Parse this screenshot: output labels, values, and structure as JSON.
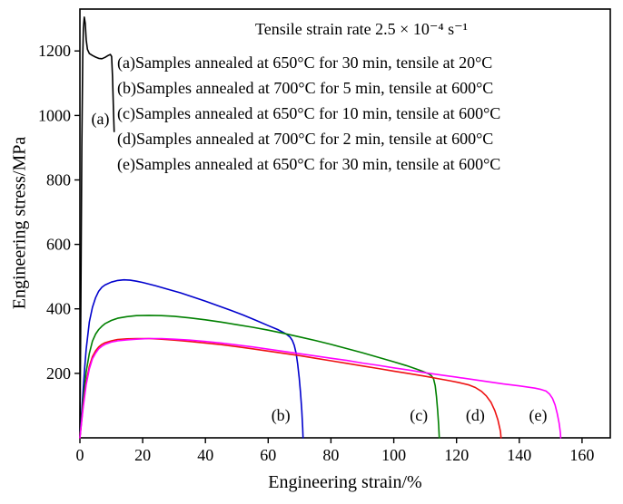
{
  "figure": {
    "background": "#ffffff",
    "axis_color": "#000000"
  },
  "chart_data": {
    "type": "line",
    "title": "Tensile strain rate 2.5 × 10⁻⁴ s⁻¹",
    "xlabel": "Engineering strain/%",
    "ylabel": "Engineering stress/MPa",
    "xlim": [
      0,
      169
    ],
    "ylim": [
      0,
      1330
    ],
    "x_ticks": [
      0,
      20,
      40,
      60,
      80,
      100,
      120,
      140,
      160
    ],
    "y_ticks": [
      200,
      400,
      600,
      800,
      1000,
      1200
    ],
    "grid": false,
    "legend_position": "top-center-inside",
    "legend": [
      "(a)Samples annealed at 650°C for 30 min, tensile at 20°C",
      "(b)Samples annealed at 700°C for 5 min, tensile at 600°C",
      "(c)Samples annealed at 650°C for 10 min, tensile at 600°C",
      "(d)Samples annealed at 700°C for 2 min, tensile at 600°C",
      "(e)Samples annealed at 650°C for 30 min, tensile at 600°C"
    ],
    "curve_labels": [
      {
        "text": "(a)",
        "x": 6.5,
        "y": 990
      },
      {
        "text": "(b)",
        "x": 64,
        "y": 70
      },
      {
        "text": "(c)",
        "x": 108,
        "y": 70
      },
      {
        "text": "(d)",
        "x": 126,
        "y": 70
      },
      {
        "text": "(e)",
        "x": 146,
        "y": 70
      }
    ],
    "series": [
      {
        "name": "a",
        "color": "#000000",
        "points": [
          [
            0,
            0
          ],
          [
            0.3,
            400
          ],
          [
            0.6,
            900
          ],
          [
            0.9,
            1180
          ],
          [
            1.1,
            1270
          ],
          [
            1.4,
            1305
          ],
          [
            1.7,
            1285
          ],
          [
            2.0,
            1235
          ],
          [
            2.4,
            1205
          ],
          [
            3.0,
            1192
          ],
          [
            4,
            1186
          ],
          [
            5,
            1181
          ],
          [
            6,
            1177
          ],
          [
            7,
            1176
          ],
          [
            8,
            1180
          ],
          [
            9,
            1186
          ],
          [
            9.7,
            1189
          ],
          [
            10.1,
            1183
          ],
          [
            10.4,
            1120
          ],
          [
            10.7,
            1010
          ],
          [
            10.9,
            950
          ]
        ]
      },
      {
        "name": "b",
        "color": "#0000cd",
        "points": [
          [
            0,
            0
          ],
          [
            0.5,
            70
          ],
          [
            1,
            145
          ],
          [
            1.5,
            215
          ],
          [
            2,
            275
          ],
          [
            3,
            360
          ],
          [
            4,
            405
          ],
          [
            5,
            435
          ],
          [
            6,
            455
          ],
          [
            7,
            467
          ],
          [
            8,
            474
          ],
          [
            10,
            483
          ],
          [
            12,
            488
          ],
          [
            14,
            490
          ],
          [
            16,
            489
          ],
          [
            18,
            486
          ],
          [
            20,
            482
          ],
          [
            24,
            472
          ],
          [
            28,
            461
          ],
          [
            32,
            450
          ],
          [
            36,
            437
          ],
          [
            40,
            424
          ],
          [
            44,
            410
          ],
          [
            48,
            396
          ],
          [
            52,
            381
          ],
          [
            56,
            365
          ],
          [
            60,
            348
          ],
          [
            63,
            336
          ],
          [
            65,
            326
          ],
          [
            66,
            320
          ],
          [
            67,
            312
          ],
          [
            67.7,
            302
          ],
          [
            68.3,
            287
          ],
          [
            68.9,
            262
          ],
          [
            69.4,
            228
          ],
          [
            69.9,
            185
          ],
          [
            70.3,
            140
          ],
          [
            70.7,
            85
          ],
          [
            71,
            30
          ],
          [
            71.1,
            0
          ]
        ]
      },
      {
        "name": "c",
        "color": "#008000",
        "points": [
          [
            0,
            0
          ],
          [
            0.5,
            55
          ],
          [
            1,
            115
          ],
          [
            2,
            205
          ],
          [
            3,
            262
          ],
          [
            4,
            300
          ],
          [
            5,
            322
          ],
          [
            6,
            336
          ],
          [
            7,
            346
          ],
          [
            8,
            354
          ],
          [
            10,
            364
          ],
          [
            12,
            371
          ],
          [
            15,
            376
          ],
          [
            18,
            379
          ],
          [
            22,
            380
          ],
          [
            26,
            379
          ],
          [
            30,
            377
          ],
          [
            35,
            372
          ],
          [
            40,
            366
          ],
          [
            45,
            359
          ],
          [
            50,
            351
          ],
          [
            55,
            343
          ],
          [
            60,
            334
          ],
          [
            65,
            324
          ],
          [
            70,
            313
          ],
          [
            75,
            302
          ],
          [
            80,
            290
          ],
          [
            85,
            277
          ],
          [
            90,
            264
          ],
          [
            95,
            250
          ],
          [
            100,
            236
          ],
          [
            104,
            224
          ],
          [
            107,
            214
          ],
          [
            109,
            207
          ],
          [
            111,
            199
          ],
          [
            112,
            193
          ],
          [
            112.7,
            183
          ],
          [
            113.2,
            162
          ],
          [
            113.6,
            128
          ],
          [
            114,
            85
          ],
          [
            114.3,
            40
          ],
          [
            114.5,
            0
          ]
        ]
      },
      {
        "name": "d",
        "color": "#ee1111",
        "points": [
          [
            0,
            0
          ],
          [
            0.5,
            48
          ],
          [
            1,
            98
          ],
          [
            2,
            172
          ],
          [
            3,
            222
          ],
          [
            4,
            252
          ],
          [
            5,
            270
          ],
          [
            6,
            282
          ],
          [
            7,
            290
          ],
          [
            8,
            295
          ],
          [
            10,
            301
          ],
          [
            12,
            305
          ],
          [
            15,
            307
          ],
          [
            18,
            308
          ],
          [
            22,
            308
          ],
          [
            26,
            306
          ],
          [
            30,
            303
          ],
          [
            35,
            299
          ],
          [
            40,
            294
          ],
          [
            45,
            289
          ],
          [
            50,
            283
          ],
          [
            55,
            276
          ],
          [
            60,
            269
          ],
          [
            65,
            262
          ],
          [
            70,
            255
          ],
          [
            75,
            247
          ],
          [
            80,
            239
          ],
          [
            85,
            231
          ],
          [
            90,
            223
          ],
          [
            95,
            215
          ],
          [
            100,
            207
          ],
          [
            105,
            199
          ],
          [
            110,
            191
          ],
          [
            114,
            184
          ],
          [
            118,
            177
          ],
          [
            121,
            171
          ],
          [
            124,
            164
          ],
          [
            126,
            156
          ],
          [
            128,
            144
          ],
          [
            129.5,
            130
          ],
          [
            131,
            110
          ],
          [
            132.2,
            85
          ],
          [
            133.2,
            55
          ],
          [
            134,
            20
          ],
          [
            134.2,
            0
          ]
        ]
      },
      {
        "name": "e",
        "color": "#ff00ff",
        "points": [
          [
            0,
            0
          ],
          [
            0.5,
            45
          ],
          [
            1,
            92
          ],
          [
            2,
            165
          ],
          [
            3,
            214
          ],
          [
            4,
            245
          ],
          [
            5,
            263
          ],
          [
            6,
            276
          ],
          [
            7,
            284
          ],
          [
            8,
            290
          ],
          [
            10,
            297
          ],
          [
            12,
            301
          ],
          [
            15,
            304
          ],
          [
            18,
            306
          ],
          [
            22,
            308
          ],
          [
            26,
            308
          ],
          [
            30,
            306
          ],
          [
            35,
            303
          ],
          [
            40,
            299
          ],
          [
            45,
            294
          ],
          [
            50,
            288
          ],
          [
            55,
            282
          ],
          [
            60,
            275
          ],
          [
            65,
            268
          ],
          [
            70,
            261
          ],
          [
            75,
            254
          ],
          [
            80,
            247
          ],
          [
            85,
            240
          ],
          [
            90,
            232
          ],
          [
            95,
            225
          ],
          [
            100,
            217
          ],
          [
            105,
            210
          ],
          [
            110,
            202
          ],
          [
            115,
            195
          ],
          [
            120,
            188
          ],
          [
            125,
            181
          ],
          [
            130,
            174
          ],
          [
            135,
            167
          ],
          [
            140,
            161
          ],
          [
            143,
            157
          ],
          [
            145,
            154
          ],
          [
            147,
            150
          ],
          [
            148.5,
            145
          ],
          [
            149.6,
            136
          ],
          [
            150.6,
            122
          ],
          [
            151.4,
            102
          ],
          [
            152.1,
            75
          ],
          [
            152.7,
            45
          ],
          [
            153.1,
            15
          ],
          [
            153.2,
            0
          ]
        ]
      }
    ]
  }
}
